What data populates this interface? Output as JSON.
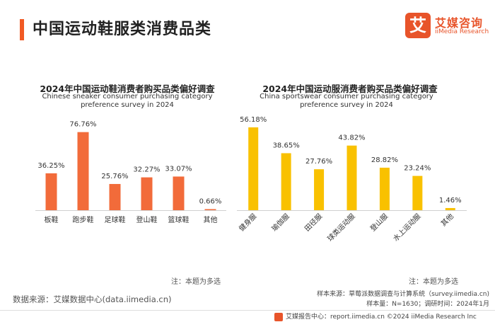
{
  "header": {
    "title": "中国运动鞋服类消费品类",
    "accent_color": "#f15a24"
  },
  "brand": {
    "mark": "艾",
    "name": "艾媒咨询",
    "name_en": "iiMedia Research",
    "color": "#e8542a"
  },
  "chart_data": [
    {
      "type": "bar",
      "title": "2024年中国运动鞋消费者购买品类偏好调查",
      "subtitle": "Chinese sneaker consumer purchasing category preference survey in 2024",
      "categories": [
        "板鞋",
        "跑步鞋",
        "足球鞋",
        "登山鞋",
        "篮球鞋",
        "其他"
      ],
      "values": [
        36.25,
        76.76,
        25.76,
        32.27,
        33.07,
        0.66
      ],
      "value_labels": [
        "36.25%",
        "76.76%",
        "25.76%",
        "32.27%",
        "33.07%",
        "0.66%"
      ],
      "ylim": [
        0,
        80
      ],
      "color": "#f26b3a",
      "grid": false,
      "note": "注：本题为多选"
    },
    {
      "type": "bar",
      "title": "2024年中国运动服消费者购买品类偏好调查",
      "subtitle": "China sportswear consumer purchasing category preference survey in 2024",
      "categories": [
        "健身服",
        "瑜伽服",
        "田径服",
        "球类运动服",
        "登山服",
        "水上运动服",
        "其他"
      ],
      "values": [
        56.18,
        38.65,
        27.76,
        43.82,
        28.82,
        23.24,
        1.46
      ],
      "value_labels": [
        "56.18%",
        "38.65%",
        "27.76%",
        "43.82%",
        "28.82%",
        "23.24%",
        "1.46%"
      ],
      "ylim": [
        0,
        60
      ],
      "color": "#f9c100",
      "grid": false,
      "note": "注：本题为多选"
    }
  ],
  "source": {
    "left_text": "数据来源：艾媒数据中心(data.iimedia.cn)",
    "sample_source": "样本来源：草莓派数据调查与计算系统（survey.iimedia.cn)",
    "sample_size": "样本量：N=1630；调研时间：2024年1月"
  },
  "footer": {
    "text": "艾媒报告中心：report.iimedia.cn    ©2024  iiMedia Research  Inc"
  }
}
